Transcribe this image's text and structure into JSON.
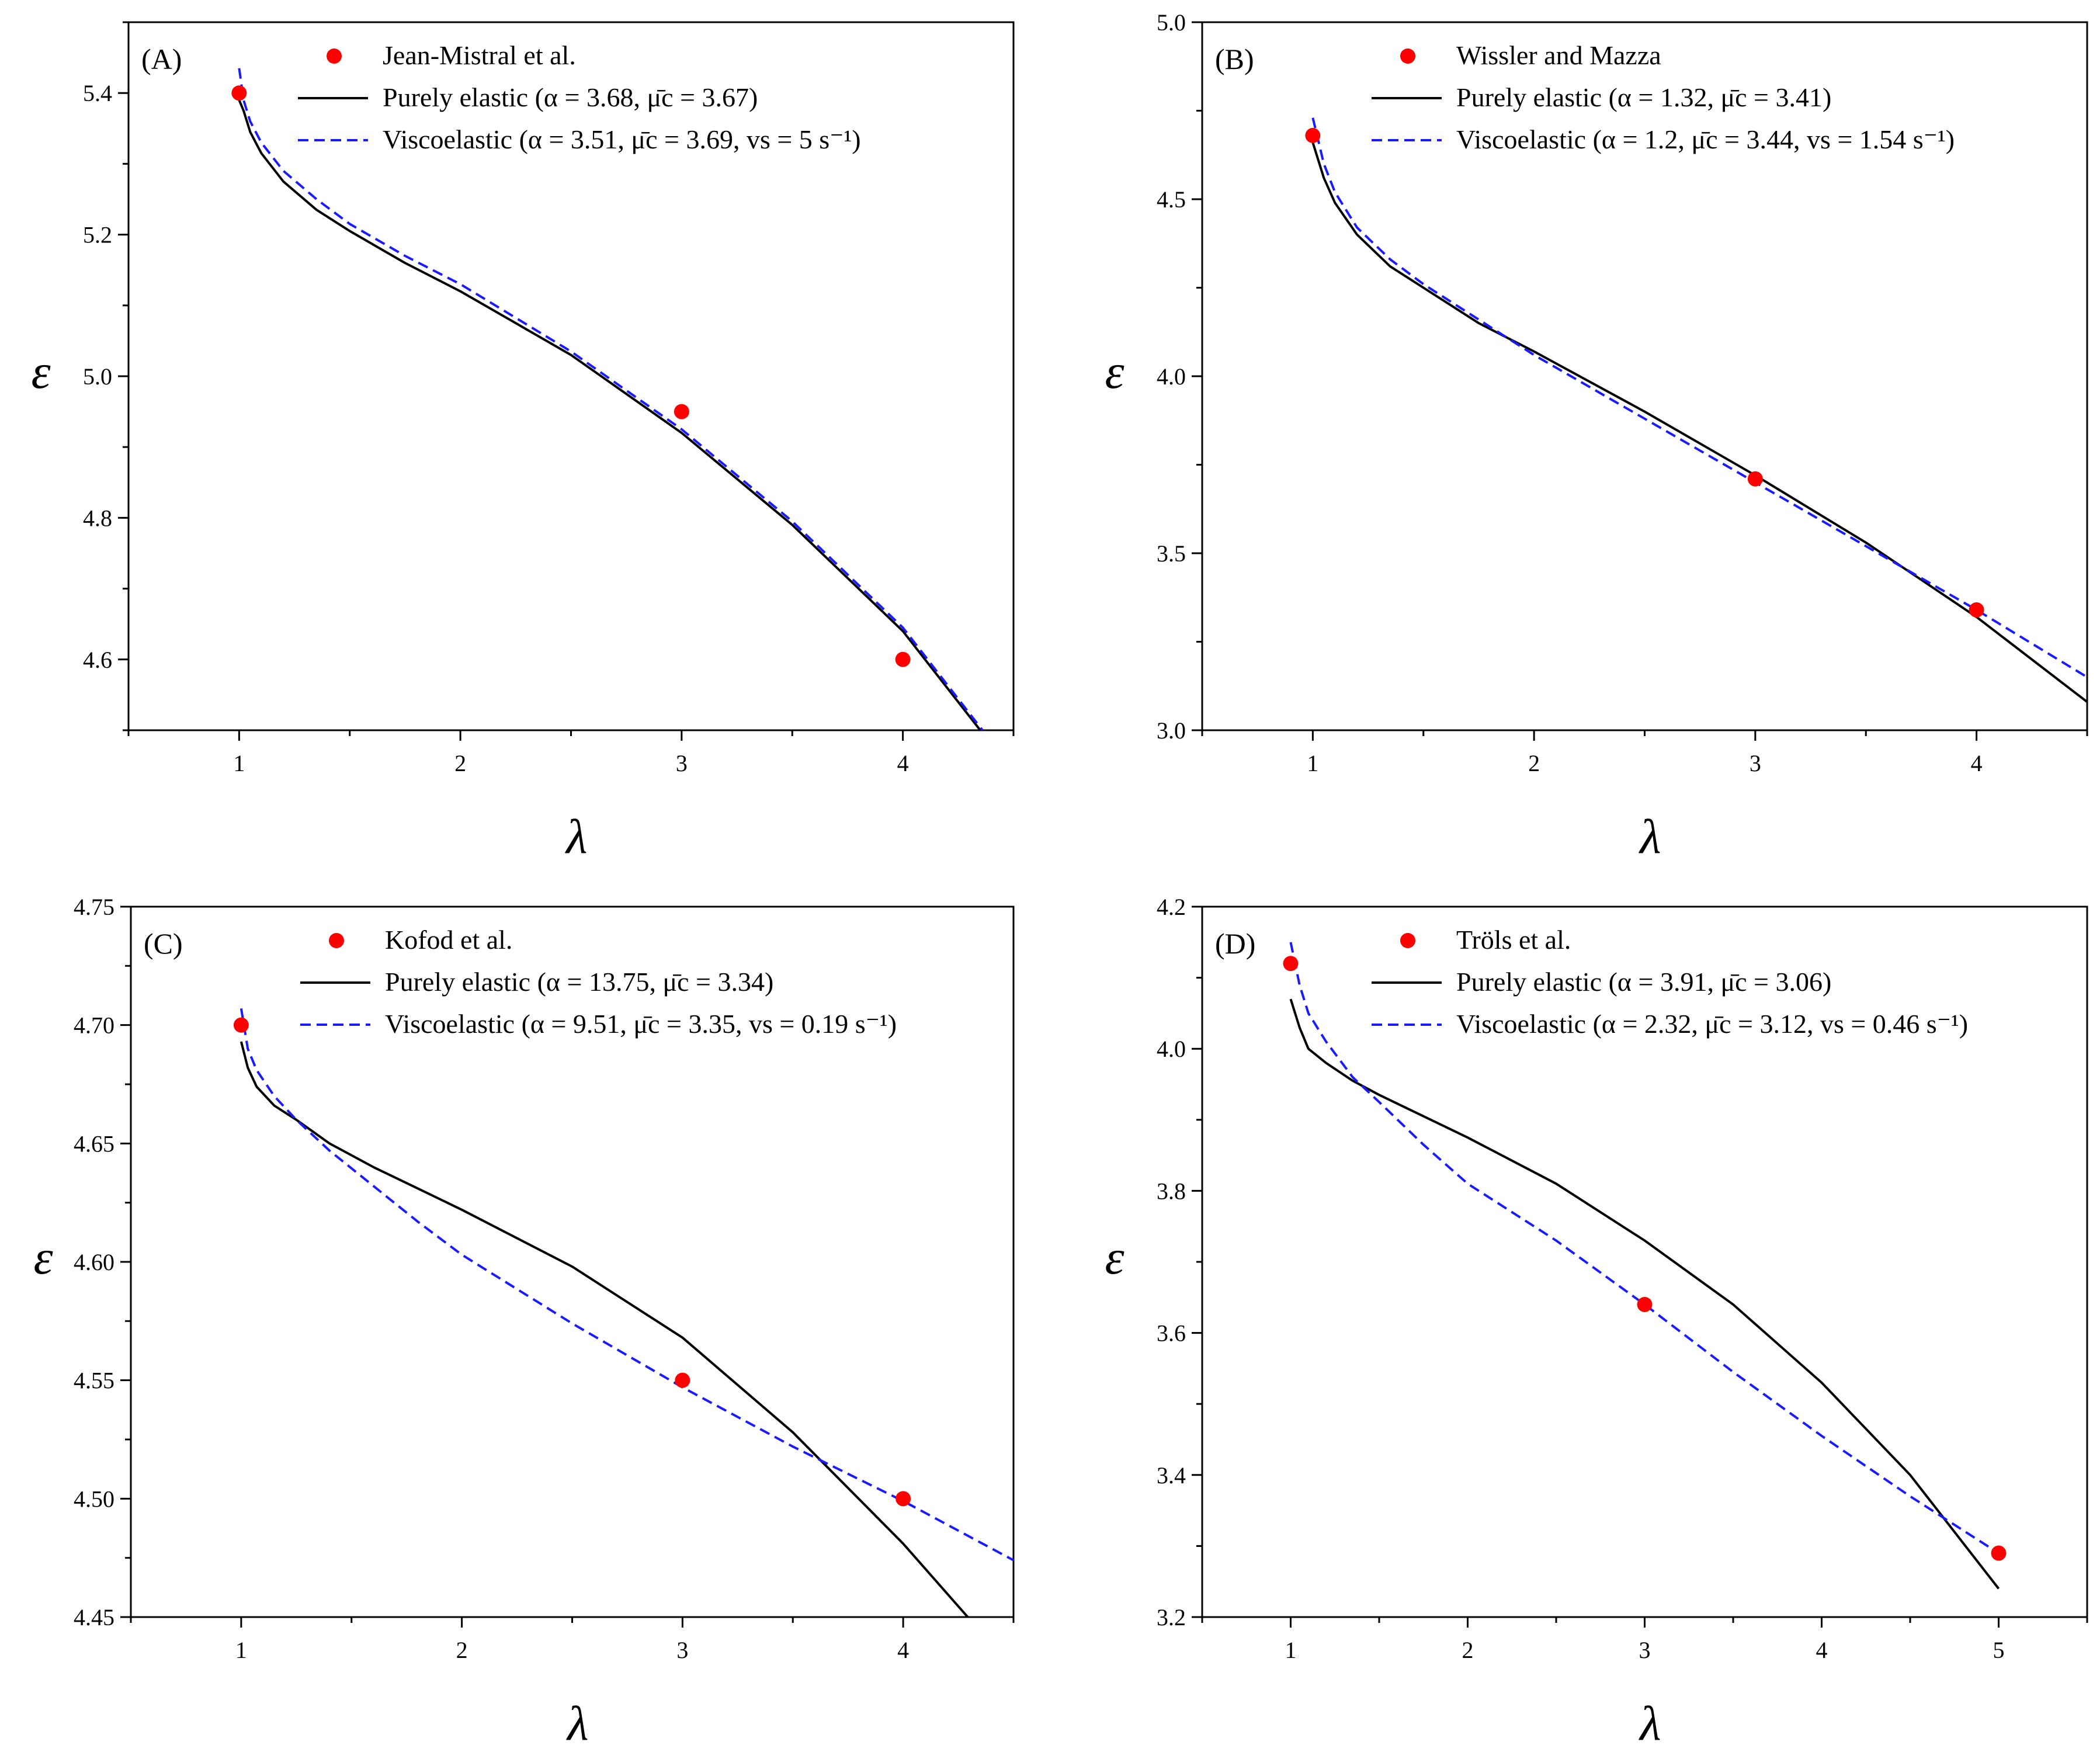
{
  "chart_data": [
    {
      "type": "line",
      "panel_label": "(A)",
      "xlabel": "λ",
      "ylabel": "ε",
      "xlim": [
        0.5,
        4.5
      ],
      "ylim": [
        4.5,
        5.5
      ],
      "xticks": [
        1,
        2,
        3,
        4
      ],
      "yticks": [
        4.6,
        4.8,
        5.0,
        5.2,
        5.4
      ],
      "ytick_labels": [
        "4.6",
        "4.8",
        "5.0",
        "5.2",
        "5.4"
      ],
      "legend": {
        "points": "Jean-Mistral et al.",
        "elastic": "Purely elastic",
        "elastic_params": "(α = 3.68, μ̄c = 3.67)",
        "visco": "Viscoelastic",
        "visco_params": "(α = 3.51, μ̄c = 3.69, vs = 5 s⁻¹)"
      },
      "experimental": {
        "x": [
          1,
          3,
          4
        ],
        "y": [
          5.4,
          4.95,
          4.6
        ]
      },
      "series": [
        {
          "name": "Purely elastic",
          "style": "solid",
          "color": "#000000",
          "x": [
            1.0,
            1.02,
            1.05,
            1.1,
            1.2,
            1.35,
            1.5,
            1.75,
            2.0,
            2.5,
            3.0,
            3.5,
            4.0,
            4.35
          ],
          "y": [
            5.39,
            5.375,
            5.345,
            5.315,
            5.275,
            5.235,
            5.205,
            5.16,
            5.12,
            5.03,
            4.92,
            4.79,
            4.64,
            4.5
          ]
        },
        {
          "name": "Viscoelastic",
          "style": "dashed",
          "color": "#1a1aff",
          "x": [
            1.0,
            1.02,
            1.05,
            1.1,
            1.2,
            1.35,
            1.5,
            1.75,
            2.0,
            2.5,
            3.0,
            3.5,
            4.0,
            4.36
          ],
          "y": [
            5.435,
            5.39,
            5.36,
            5.33,
            5.29,
            5.25,
            5.215,
            5.17,
            5.13,
            5.035,
            4.925,
            4.795,
            4.645,
            4.5
          ]
        }
      ]
    },
    {
      "type": "line",
      "panel_label": "(B)",
      "xlabel": "λ",
      "ylabel": "ε",
      "xlim": [
        0.5,
        4.5
      ],
      "ylim": [
        3.0,
        5.0
      ],
      "xticks": [
        1,
        2,
        3,
        4
      ],
      "yticks": [
        3.0,
        3.5,
        4.0,
        4.5,
        5.0
      ],
      "ytick_labels": [
        "3.0",
        "3.5",
        "4.0",
        "4.5",
        "5.0"
      ],
      "legend": {
        "points": "Wissler and Mazza",
        "elastic": "Purely elastic",
        "elastic_params": "(α = 1.32, μ̄c = 3.41)",
        "visco": "Viscoelastic",
        "visco_params": "(α = 1.2, μ̄c = 3.44, vs = 1.54 s⁻¹)"
      },
      "experimental": {
        "x": [
          1,
          3,
          4
        ],
        "y": [
          4.68,
          3.71,
          3.34
        ]
      },
      "series": [
        {
          "name": "Purely elastic",
          "style": "solid",
          "color": "#000000",
          "x": [
            1.0,
            1.05,
            1.1,
            1.2,
            1.35,
            1.5,
            1.75,
            2.0,
            2.5,
            3.0,
            3.5,
            4.0,
            4.5
          ],
          "y": [
            4.66,
            4.56,
            4.49,
            4.4,
            4.31,
            4.25,
            4.15,
            4.07,
            3.9,
            3.72,
            3.53,
            3.32,
            3.08
          ]
        },
        {
          "name": "Viscoelastic",
          "style": "dashed",
          "color": "#1a1aff",
          "x": [
            1.0,
            1.05,
            1.1,
            1.2,
            1.35,
            1.5,
            1.75,
            2.0,
            2.5,
            3.0,
            3.5,
            4.0,
            4.5
          ],
          "y": [
            4.73,
            4.6,
            4.52,
            4.42,
            4.33,
            4.26,
            4.16,
            4.06,
            3.88,
            3.7,
            3.52,
            3.34,
            3.15
          ]
        }
      ]
    },
    {
      "type": "line",
      "panel_label": "(C)",
      "xlabel": "λ",
      "ylabel": "ε",
      "xlim": [
        0.5,
        4.5
      ],
      "ylim": [
        4.45,
        4.75
      ],
      "xticks": [
        1,
        2,
        3,
        4
      ],
      "yticks": [
        4.45,
        4.5,
        4.55,
        4.6,
        4.65,
        4.7,
        4.75
      ],
      "ytick_labels": [
        "4.45",
        "4.50",
        "4.55",
        "4.60",
        "4.65",
        "4.70",
        "4.75"
      ],
      "legend": {
        "points": "Kofod et al.",
        "elastic": "Purely elastic",
        "elastic_params": "(α = 13.75, μ̄c = 3.34)",
        "visco": "Viscoelastic",
        "visco_params": "(α = 9.51, μ̄c = 3.35, vs = 0.19 s⁻¹)"
      },
      "experimental": {
        "x": [
          1,
          3,
          4
        ],
        "y": [
          4.7,
          4.55,
          4.5
        ]
      },
      "series": [
        {
          "name": "Purely elastic",
          "style": "solid",
          "color": "#000000",
          "x": [
            1.0,
            1.03,
            1.07,
            1.15,
            1.25,
            1.4,
            1.6,
            1.8,
            2.0,
            2.5,
            3.0,
            3.5,
            4.0,
            4.34
          ],
          "y": [
            4.693,
            4.682,
            4.674,
            4.666,
            4.66,
            4.65,
            4.64,
            4.631,
            4.622,
            4.598,
            4.568,
            4.528,
            4.481,
            4.445
          ]
        },
        {
          "name": "Viscoelastic",
          "style": "dashed",
          "color": "#1a1aff",
          "x": [
            1.0,
            1.03,
            1.07,
            1.15,
            1.25,
            1.4,
            1.6,
            1.8,
            2.0,
            2.5,
            3.0,
            3.5,
            4.0,
            4.5
          ],
          "y": [
            4.707,
            4.69,
            4.681,
            4.67,
            4.66,
            4.647,
            4.632,
            4.617,
            4.603,
            4.574,
            4.547,
            4.522,
            4.499,
            4.474
          ]
        }
      ]
    },
    {
      "type": "line",
      "panel_label": "(D)",
      "xlabel": "λ",
      "ylabel": "ε",
      "xlim": [
        0.5,
        5.5
      ],
      "ylim": [
        3.2,
        4.2
      ],
      "xticks": [
        1,
        2,
        3,
        4,
        5
      ],
      "yticks": [
        3.2,
        3.4,
        3.6,
        3.8,
        4.0,
        4.2
      ],
      "ytick_labels": [
        "3.2",
        "3.4",
        "3.6",
        "3.8",
        "4.0",
        "4.2"
      ],
      "legend": {
        "points": "Tröls et al.",
        "elastic": "Purely elastic",
        "elastic_params": "(α = 3.91, μ̄c = 3.06)",
        "visco": "Viscoelastic",
        "visco_params": "(α = 2.32, μ̄c = 3.12, vs = 0.46 s⁻¹)"
      },
      "experimental": {
        "x": [
          1,
          3,
          5
        ],
        "y": [
          4.12,
          3.64,
          3.29
        ]
      },
      "series": [
        {
          "name": "Purely elastic",
          "style": "solid",
          "color": "#000000",
          "x": [
            1.0,
            1.05,
            1.1,
            1.2,
            1.35,
            1.5,
            1.75,
            2.0,
            2.5,
            3.0,
            3.5,
            4.0,
            4.5,
            5.0
          ],
          "y": [
            4.07,
            4.03,
            4.0,
            3.98,
            3.955,
            3.935,
            3.905,
            3.875,
            3.81,
            3.73,
            3.64,
            3.53,
            3.4,
            3.24
          ]
        },
        {
          "name": "Viscoelastic",
          "style": "dashed",
          "color": "#1a1aff",
          "x": [
            1.0,
            1.05,
            1.1,
            1.2,
            1.35,
            1.5,
            1.75,
            2.0,
            2.5,
            3.0,
            3.5,
            4.0,
            4.5,
            5.0
          ],
          "y": [
            4.15,
            4.09,
            4.05,
            4.01,
            3.96,
            3.925,
            3.865,
            3.81,
            3.73,
            3.64,
            3.545,
            3.455,
            3.37,
            3.29
          ]
        }
      ]
    }
  ]
}
